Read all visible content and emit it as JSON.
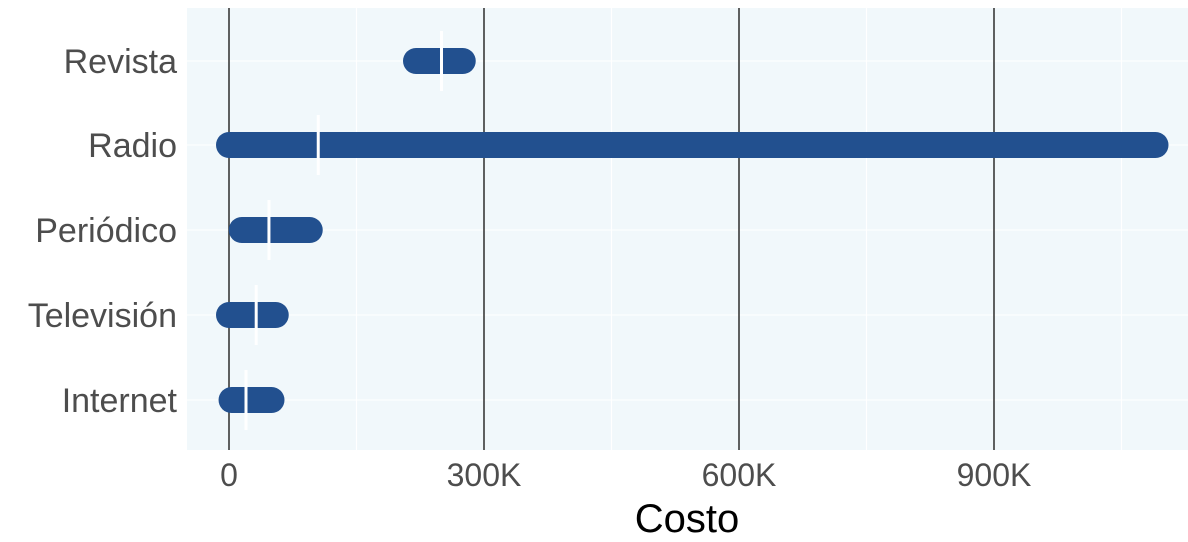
{
  "chart_data": {
    "type": "bar",
    "subtype": "range-with-marker",
    "categories": [
      "Revista",
      "Radio",
      "Periódico",
      "Televisión",
      "Internet"
    ],
    "series": [
      {
        "ranges": [
          [
            220000,
            275000
          ],
          [
            0,
            1090000
          ],
          [
            15000,
            95000
          ],
          [
            0,
            55000
          ],
          [
            3000,
            50000
          ]
        ],
        "markers": [
          250000,
          105000,
          47000,
          32000,
          20000
        ]
      }
    ],
    "xlabel": "Costo",
    "ylabel": "",
    "xlim": [
      -50000,
      1125000
    ],
    "xticks": [
      0,
      300000,
      600000,
      900000
    ],
    "xtick_labels": [
      "0",
      "300K",
      "600K",
      "900K"
    ],
    "grid": true,
    "colors": {
      "bar": "#22508f",
      "marker": "#ffffff",
      "panel": "#f1f8fb",
      "major_grid": "#3a3a3a",
      "minor_grid": "#ffffff"
    }
  }
}
